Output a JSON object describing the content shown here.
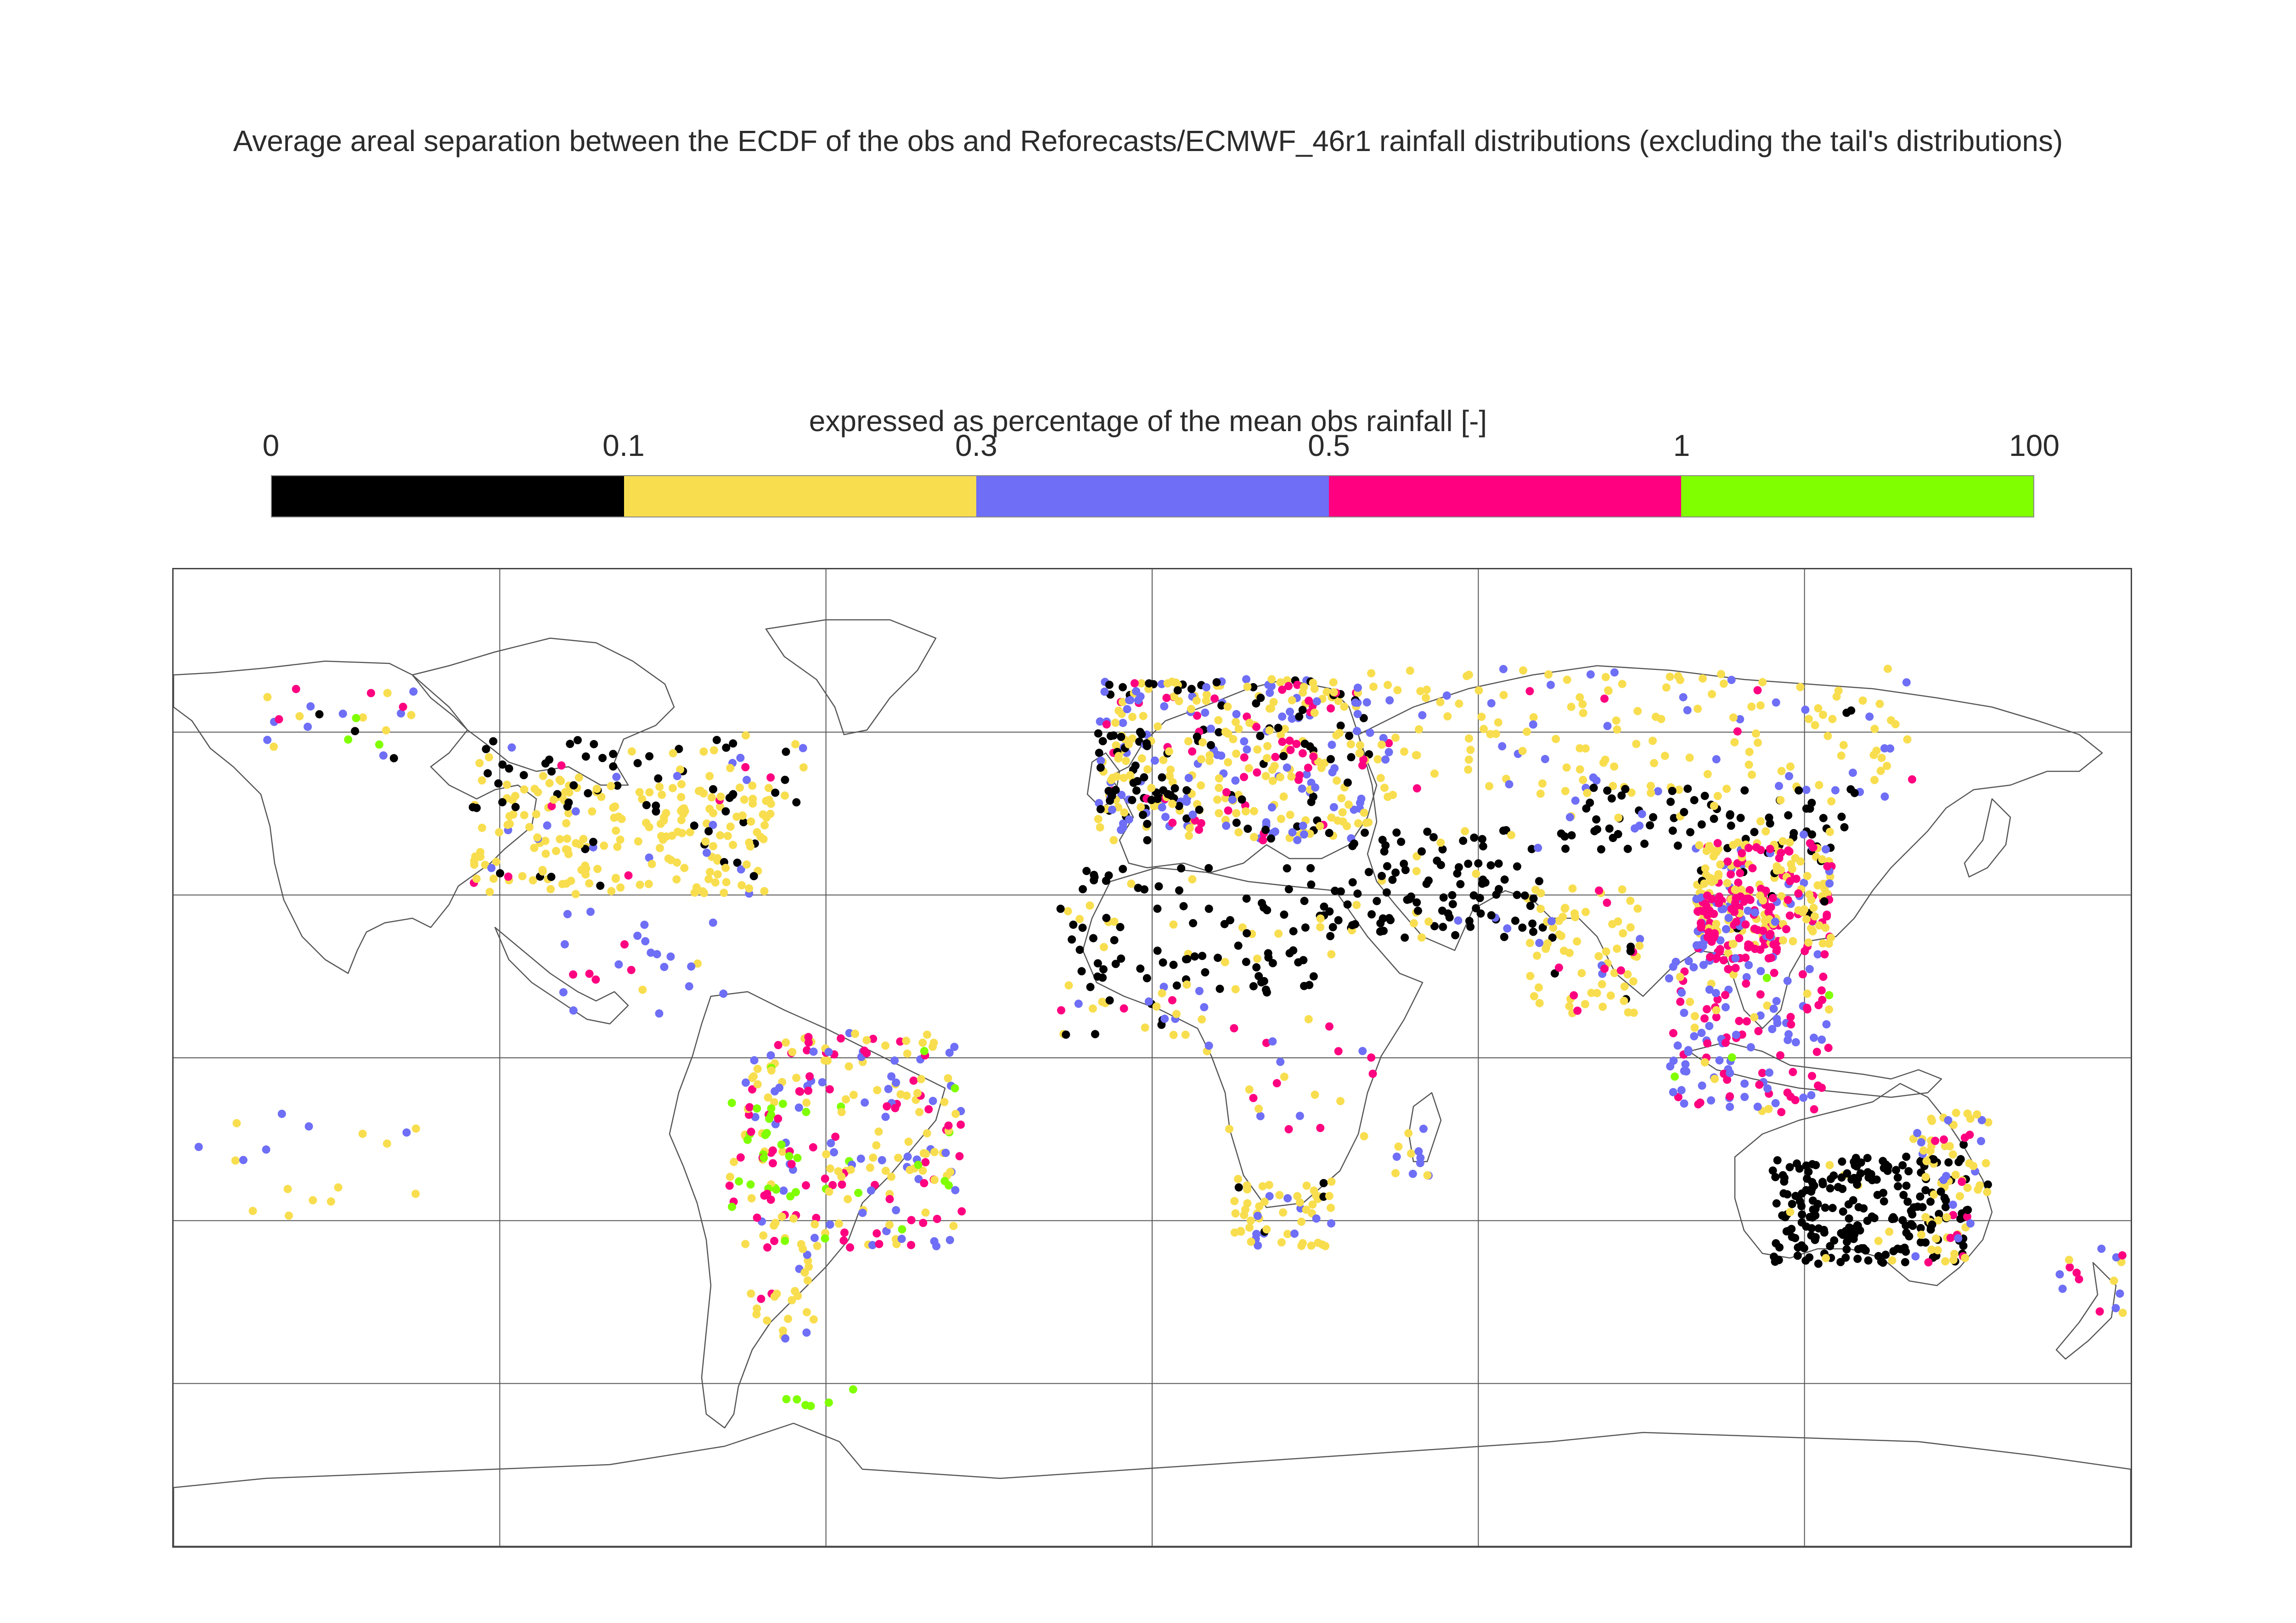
{
  "title": "Average areal separation between the ECDF of the obs and Reforecasts/ECMWF_46r1 rainfall distributions (excluding the tail's distributions)",
  "legend": {
    "title": "expressed as percentage of the mean obs rainfall [-]",
    "ticks": [
      "0",
      "0.1",
      "0.3",
      "0.5",
      "1",
      "100"
    ],
    "bins": [
      {
        "range": "0-0.1",
        "color": "#000000"
      },
      {
        "range": "0.1-0.3",
        "color": "#f8de4f"
      },
      {
        "range": "0.3-0.5",
        "color": "#6e6ef6"
      },
      {
        "range": "0.5-1",
        "color": "#ff0080"
      },
      {
        "range": "1-100",
        "color": "#80ff00"
      }
    ]
  },
  "map": {
    "projection": "equirectangular",
    "lon_range": [
      -180,
      180
    ],
    "lat_range": [
      -90,
      90
    ],
    "graticule_lon": [
      -120,
      -60,
      0,
      60,
      120
    ],
    "graticule_lat": [
      60,
      30,
      0,
      -30,
      -60
    ],
    "clusters": [
      {
        "region": "North America",
        "lon": [
          -125,
          -70
        ],
        "lat": [
          30,
          52
        ],
        "n": 220,
        "mix": [
          0.12,
          0.8,
          0.06,
          0.02,
          0
        ]
      },
      {
        "region": "Canada",
        "lon": [
          -125,
          -60
        ],
        "lat": [
          46,
          60
        ],
        "n": 70,
        "mix": [
          0.55,
          0.35,
          0.05,
          0.05,
          0
        ]
      },
      {
        "region": "Alaska",
        "lon": [
          -165,
          -135
        ],
        "lat": [
          55,
          68
        ],
        "n": 25,
        "mix": [
          0.05,
          0.2,
          0.35,
          0.3,
          0.1
        ]
      },
      {
        "region": "Central America",
        "lon": [
          -110,
          -78
        ],
        "lat": [
          8,
          28
        ],
        "n": 25,
        "mix": [
          0,
          0.2,
          0.5,
          0.3,
          0
        ]
      },
      {
        "region": "South America",
        "lon": [
          -75,
          -35
        ],
        "lat": [
          -35,
          5
        ],
        "n": 240,
        "mix": [
          0,
          0.35,
          0.3,
          0.28,
          0.07
        ]
      },
      {
        "region": "Andes",
        "lon": [
          -78,
          -64
        ],
        "lat": [
          -30,
          -8
        ],
        "n": 35,
        "mix": [
          0,
          0.1,
          0.1,
          0.3,
          0.5
        ]
      },
      {
        "region": "Patagonia",
        "lon": [
          -74,
          -62
        ],
        "lat": [
          -52,
          -35
        ],
        "n": 25,
        "mix": [
          0,
          0.6,
          0.3,
          0.1,
          0
        ]
      },
      {
        "region": "Europe",
        "lon": [
          -10,
          40
        ],
        "lat": [
          40,
          70
        ],
        "n": 380,
        "mix": [
          0.15,
          0.45,
          0.28,
          0.12,
          0
        ]
      },
      {
        "region": "West Europe",
        "lon": [
          -10,
          5
        ],
        "lat": [
          43,
          60
        ],
        "n": 60,
        "mix": [
          0.7,
          0.2,
          0.1,
          0,
          0
        ]
      },
      {
        "region": "North Africa",
        "lon": [
          -17,
          35
        ],
        "lat": [
          12,
          35
        ],
        "n": 110,
        "mix": [
          0.9,
          0.1,
          0,
          0,
          0
        ]
      },
      {
        "region": "Middle East",
        "lon": [
          35,
          72
        ],
        "lat": [
          22,
          42
        ],
        "n": 110,
        "mix": [
          0.85,
          0.1,
          0.05,
          0,
          0
        ]
      },
      {
        "region": "West Africa",
        "lon": [
          -17,
          10
        ],
        "lat": [
          4,
          14
        ],
        "n": 30,
        "mix": [
          0.2,
          0.5,
          0.2,
          0.1,
          0
        ]
      },
      {
        "region": "Central/East Africa",
        "lon": [
          10,
          42
        ],
        "lat": [
          -15,
          10
        ],
        "n": 25,
        "mix": [
          0,
          0.3,
          0.4,
          0.3,
          0
        ]
      },
      {
        "region": "Southern Africa",
        "lon": [
          15,
          33
        ],
        "lat": [
          -35,
          -22
        ],
        "n": 60,
        "mix": [
          0.1,
          0.75,
          0.15,
          0,
          0
        ]
      },
      {
        "region": "Russia",
        "lon": [
          40,
          140
        ],
        "lat": [
          48,
          72
        ],
        "n": 180,
        "mix": [
          0.02,
          0.72,
          0.22,
          0.04,
          0
        ]
      },
      {
        "region": "Central Asia",
        "lon": [
          75,
          130
        ],
        "lat": [
          38,
          50
        ],
        "n": 90,
        "mix": [
          0.75,
          0.2,
          0.05,
          0,
          0
        ]
      },
      {
        "region": "China",
        "lon": [
          100,
          125
        ],
        "lat": [
          20,
          40
        ],
        "n": 240,
        "mix": [
          0.02,
          0.6,
          0.12,
          0.26,
          0
        ]
      },
      {
        "region": "South China",
        "lon": [
          100,
          115
        ],
        "lat": [
          18,
          30
        ],
        "n": 90,
        "mix": [
          0,
          0.1,
          0.2,
          0.7,
          0
        ]
      },
      {
        "region": "India",
        "lon": [
          68,
          90
        ],
        "lat": [
          8,
          32
        ],
        "n": 80,
        "mix": [
          0.05,
          0.8,
          0.1,
          0.05,
          0
        ]
      },
      {
        "region": "Southeast Asia",
        "lon": [
          95,
          125
        ],
        "lat": [
          -10,
          20
        ],
        "n": 150,
        "mix": [
          0,
          0.1,
          0.5,
          0.35,
          0.05
        ]
      },
      {
        "region": "Australia interior",
        "lon": [
          114,
          150
        ],
        "lat": [
          -38,
          -18
        ],
        "n": 220,
        "mix": [
          0.95,
          0.05,
          0,
          0,
          0
        ]
      },
      {
        "region": "Australia coast",
        "lon": [
          140,
          154
        ],
        "lat": [
          -38,
          -10
        ],
        "n": 80,
        "mix": [
          0.1,
          0.65,
          0.15,
          0.1,
          0
        ]
      },
      {
        "region": "New Zealand",
        "lon": [
          166,
          179
        ],
        "lat": [
          -47,
          -35
        ],
        "n": 15,
        "mix": [
          0,
          0.3,
          0.3,
          0.4,
          0
        ]
      },
      {
        "region": "Madagascar",
        "lon": [
          43,
          51
        ],
        "lat": [
          -25,
          -13
        ],
        "n": 12,
        "mix": [
          0,
          0.4,
          0.6,
          0,
          0
        ]
      },
      {
        "region": "Pacific",
        "lon": [
          -178,
          -130
        ],
        "lat": [
          -30,
          -10
        ],
        "n": 18,
        "mix": [
          0,
          0.75,
          0.25,
          0,
          0
        ]
      },
      {
        "region": "Antarctic Peninsula",
        "lon": [
          -68,
          -55
        ],
        "lat": [
          -66,
          -60
        ],
        "n": 6,
        "mix": [
          0,
          0,
          0,
          0,
          1
        ]
      }
    ]
  }
}
